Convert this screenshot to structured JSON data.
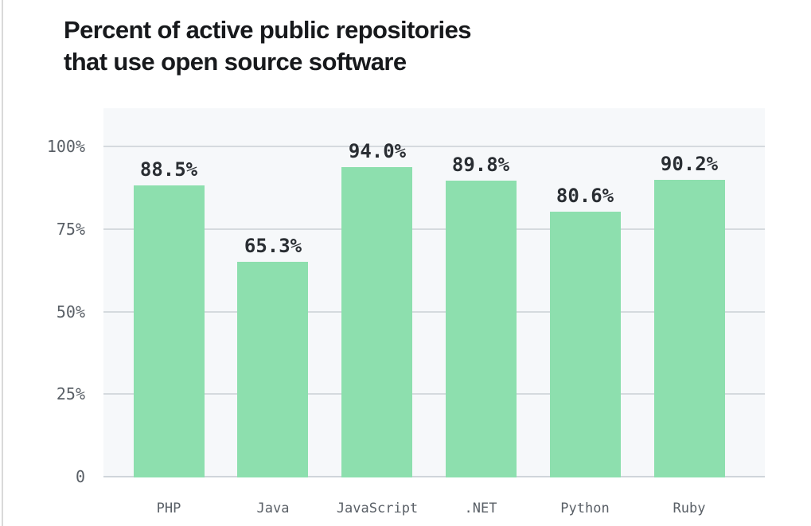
{
  "page": {
    "background": "#ffffff",
    "left_border_color": "#d9d9d9"
  },
  "chart_data": {
    "type": "bar",
    "title": "Percent of active public repositories that use open source software",
    "title_lines": [
      "Percent of active public repositories",
      "that use open source software"
    ],
    "categories": [
      "PHP",
      "Java",
      "JavaScript",
      ".NET",
      "Python",
      "Ruby"
    ],
    "values": [
      88.5,
      65.3,
      94.0,
      89.8,
      80.6,
      90.2
    ],
    "value_labels": [
      "88.5%",
      "65.3%",
      "94.0%",
      "89.8%",
      "80.6%",
      "90.2%"
    ],
    "yticks": [
      {
        "value": 100,
        "label": "100%"
      },
      {
        "value": 75,
        "label": "75%"
      },
      {
        "value": 50,
        "label": "50%"
      },
      {
        "value": 25,
        "label": "25%"
      },
      {
        "value": 0,
        "label": "0"
      }
    ],
    "ylim": [
      0,
      112
    ],
    "xlabel": "",
    "ylabel": "",
    "grid": true,
    "legend": false,
    "colors": {
      "bar": "#8ddfae",
      "plot_background": "#f6f8fa",
      "grid": "#d5dade",
      "baseline": "#cfd5da",
      "y_tick_label": "#595f66",
      "x_tick_label": "#595f66",
      "value_label": "#2a2e33",
      "title": "#17191c"
    }
  }
}
